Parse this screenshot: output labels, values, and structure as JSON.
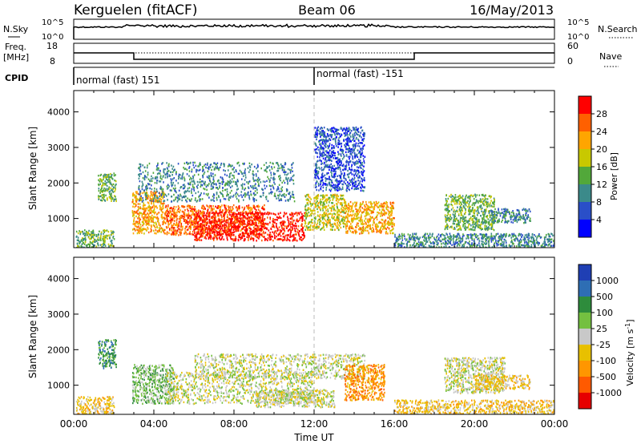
{
  "header": {
    "station": "Kerguelen (fitACF)",
    "beam": "Beam 06",
    "date": "16/May/2013"
  },
  "top_panels": {
    "nsky_label": "N.Sky",
    "nsearch_label": "N.Search",
    "nsky_ticks": [
      "10^5",
      "10^0"
    ],
    "nsearch_ticks": [
      "10^5",
      "10^0"
    ],
    "freq_label_1": "Freq.",
    "freq_label_2": "[MHz]",
    "freq_ticks": [
      "18",
      "8"
    ],
    "nave_label": "Nave",
    "nave_ticks": [
      "60",
      "0"
    ],
    "cpid_label": "CPID",
    "cpid_segments": [
      {
        "label": "normal (fast) 151",
        "start_hour": 0
      },
      {
        "label": "normal (fast) -151",
        "start_hour": 12
      }
    ]
  },
  "colors": {
    "power_scale": [
      "#0000ff",
      "#2a4fc8",
      "#3b8a8a",
      "#52a83a",
      "#c8c800",
      "#ffa500",
      "#ff6000",
      "#ff0000"
    ],
    "velocity_scale": [
      "#1f3fb4",
      "#2e6eb4",
      "#2e8c3c",
      "#74c040",
      "#c8c8c8",
      "#e8c000",
      "#ff9600",
      "#ff5a00",
      "#e60000"
    ],
    "ground_scatter": "#a0a0a0"
  },
  "chart_data": [
    {
      "type": "heatmap",
      "name": "power-panel",
      "xlabel": "",
      "ylabel": "Slant Range [km]",
      "xlim": [
        0,
        24
      ],
      "ylim": [
        180,
        4600
      ],
      "yticks": [
        "1000",
        "2000",
        "3000",
        "4000"
      ],
      "colorbar_label": "Power [dB]",
      "colorbar_ticks": [
        "4",
        "8",
        "12",
        "16",
        "20",
        "24",
        "28"
      ],
      "regions": [
        {
          "x": [
            0.1,
            2.0
          ],
          "y": [
            200,
            700
          ],
          "level": 3
        },
        {
          "x": [
            1.2,
            2.1
          ],
          "y": [
            1500,
            2300
          ],
          "level": 3
        },
        {
          "x": [
            2.9,
            4.5
          ],
          "y": [
            600,
            1800
          ],
          "level": 5
        },
        {
          "x": [
            4.5,
            9.5
          ],
          "y": [
            550,
            1400
          ],
          "level": 6
        },
        {
          "x": [
            6.0,
            11.5
          ],
          "y": [
            400,
            1200
          ],
          "level": 7
        },
        {
          "x": [
            3.2,
            11.0
          ],
          "y": [
            1500,
            2600
          ],
          "level": 2
        },
        {
          "x": [
            11.5,
            13.5
          ],
          "y": [
            700,
            1700
          ],
          "level": 4
        },
        {
          "x": [
            12.0,
            14.5
          ],
          "y": [
            1800,
            3600
          ],
          "level": 1
        },
        {
          "x": [
            13.5,
            16.0
          ],
          "y": [
            600,
            1500
          ],
          "level": 5
        },
        {
          "x": [
            18.5,
            21.0
          ],
          "y": [
            700,
            1700
          ],
          "level": 3
        },
        {
          "x": [
            20.8,
            22.8
          ],
          "y": [
            900,
            1300
          ],
          "level": 2
        },
        {
          "x": [
            16.0,
            24.0
          ],
          "y": [
            200,
            600
          ],
          "level": 2
        }
      ]
    },
    {
      "type": "heatmap",
      "name": "velocity-panel",
      "xlabel": "Time UT",
      "ylabel": "Slant Range [km]",
      "xlim": [
        0,
        24
      ],
      "ylim": [
        180,
        4600
      ],
      "yticks": [
        "1000",
        "2000",
        "3000",
        "4000"
      ],
      "xticks": [
        "00:00",
        "04:00",
        "08:00",
        "12:00",
        "16:00",
        "20:00",
        "00:00"
      ],
      "colorbar_label": "Velocity [m s^-1]",
      "colorbar_ticks": [
        "1000",
        "500",
        "100",
        "25",
        "-25",
        "-100",
        "-500",
        "-1000"
      ],
      "regions": [
        {
          "x": [
            0.1,
            2.0
          ],
          "y": [
            200,
            700
          ],
          "level": 5
        },
        {
          "x": [
            1.2,
            2.1
          ],
          "y": [
            1500,
            2300
          ],
          "level": 2
        },
        {
          "x": [
            2.9,
            5.0
          ],
          "y": [
            500,
            1600
          ],
          "level": 3
        },
        {
          "x": [
            4.5,
            12.0
          ],
          "y": [
            500,
            1400
          ],
          "level": 4
        },
        {
          "x": [
            6.0,
            14.5
          ],
          "y": [
            1200,
            1900
          ],
          "level": 4
        },
        {
          "x": [
            9.0,
            13.0
          ],
          "y": [
            400,
            900
          ],
          "level": 4
        },
        {
          "x": [
            13.5,
            15.5
          ],
          "y": [
            600,
            1600
          ],
          "level": 6
        },
        {
          "x": [
            18.5,
            21.5
          ],
          "y": [
            800,
            1800
          ],
          "level": 4
        },
        {
          "x": [
            20.0,
            22.8
          ],
          "y": [
            900,
            1300
          ],
          "level": 5
        },
        {
          "x": [
            16.0,
            24.0
          ],
          "y": [
            200,
            600
          ],
          "level": 5
        }
      ]
    }
  ]
}
